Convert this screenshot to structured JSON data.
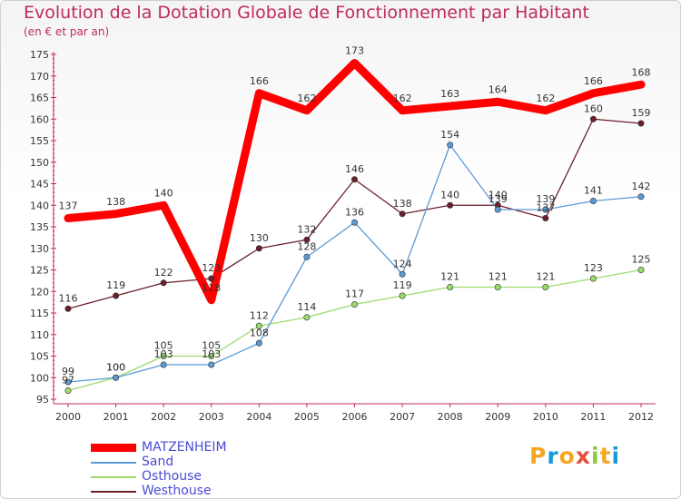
{
  "chart_data": {
    "type": "line",
    "title": "Evolution de la Dotation Globale de Fonctionnement par Habitant",
    "subtitle": "(en € et par an)",
    "x": [
      "2000",
      "2001",
      "2002",
      "2003",
      "2004",
      "2005",
      "2006",
      "2007",
      "2008",
      "2009",
      "2010",
      "2011",
      "2012"
    ],
    "ylim": [
      95,
      175
    ],
    "yticks": [
      95,
      100,
      105,
      110,
      115,
      120,
      125,
      130,
      135,
      140,
      145,
      150,
      155,
      160,
      165,
      170,
      175
    ],
    "grid": false,
    "legend_position": "bottom-left",
    "series": [
      {
        "name": "MATZENHEIM",
        "color": "#ff0000",
        "values": [
          137,
          138,
          140,
          118,
          166,
          162,
          173,
          162,
          163,
          164,
          162,
          166,
          168
        ]
      },
      {
        "name": "Sand",
        "color": "#5b9bd5",
        "values": [
          99,
          100,
          103,
          103,
          108,
          128,
          136,
          124,
          154,
          139,
          139,
          141,
          142
        ]
      },
      {
        "name": "Osthouse",
        "color": "#9cdc6c",
        "values": [
          97,
          100,
          105,
          105,
          112,
          114,
          117,
          119,
          121,
          121,
          121,
          123,
          125
        ]
      },
      {
        "name": "Westhouse",
        "color": "#6b1f2a",
        "values": [
          116,
          119,
          122,
          123,
          130,
          132,
          146,
          138,
          140,
          140,
          137,
          160,
          159
        ]
      }
    ]
  },
  "brand": {
    "letters": [
      "P",
      "r",
      "o",
      "x",
      "i",
      "t",
      "i"
    ],
    "colors": [
      "#f5a623",
      "#1a9ad6",
      "#f5a623",
      "#e74c3c",
      "#8dc63f",
      "#f5a623",
      "#1a9ad6"
    ]
  }
}
